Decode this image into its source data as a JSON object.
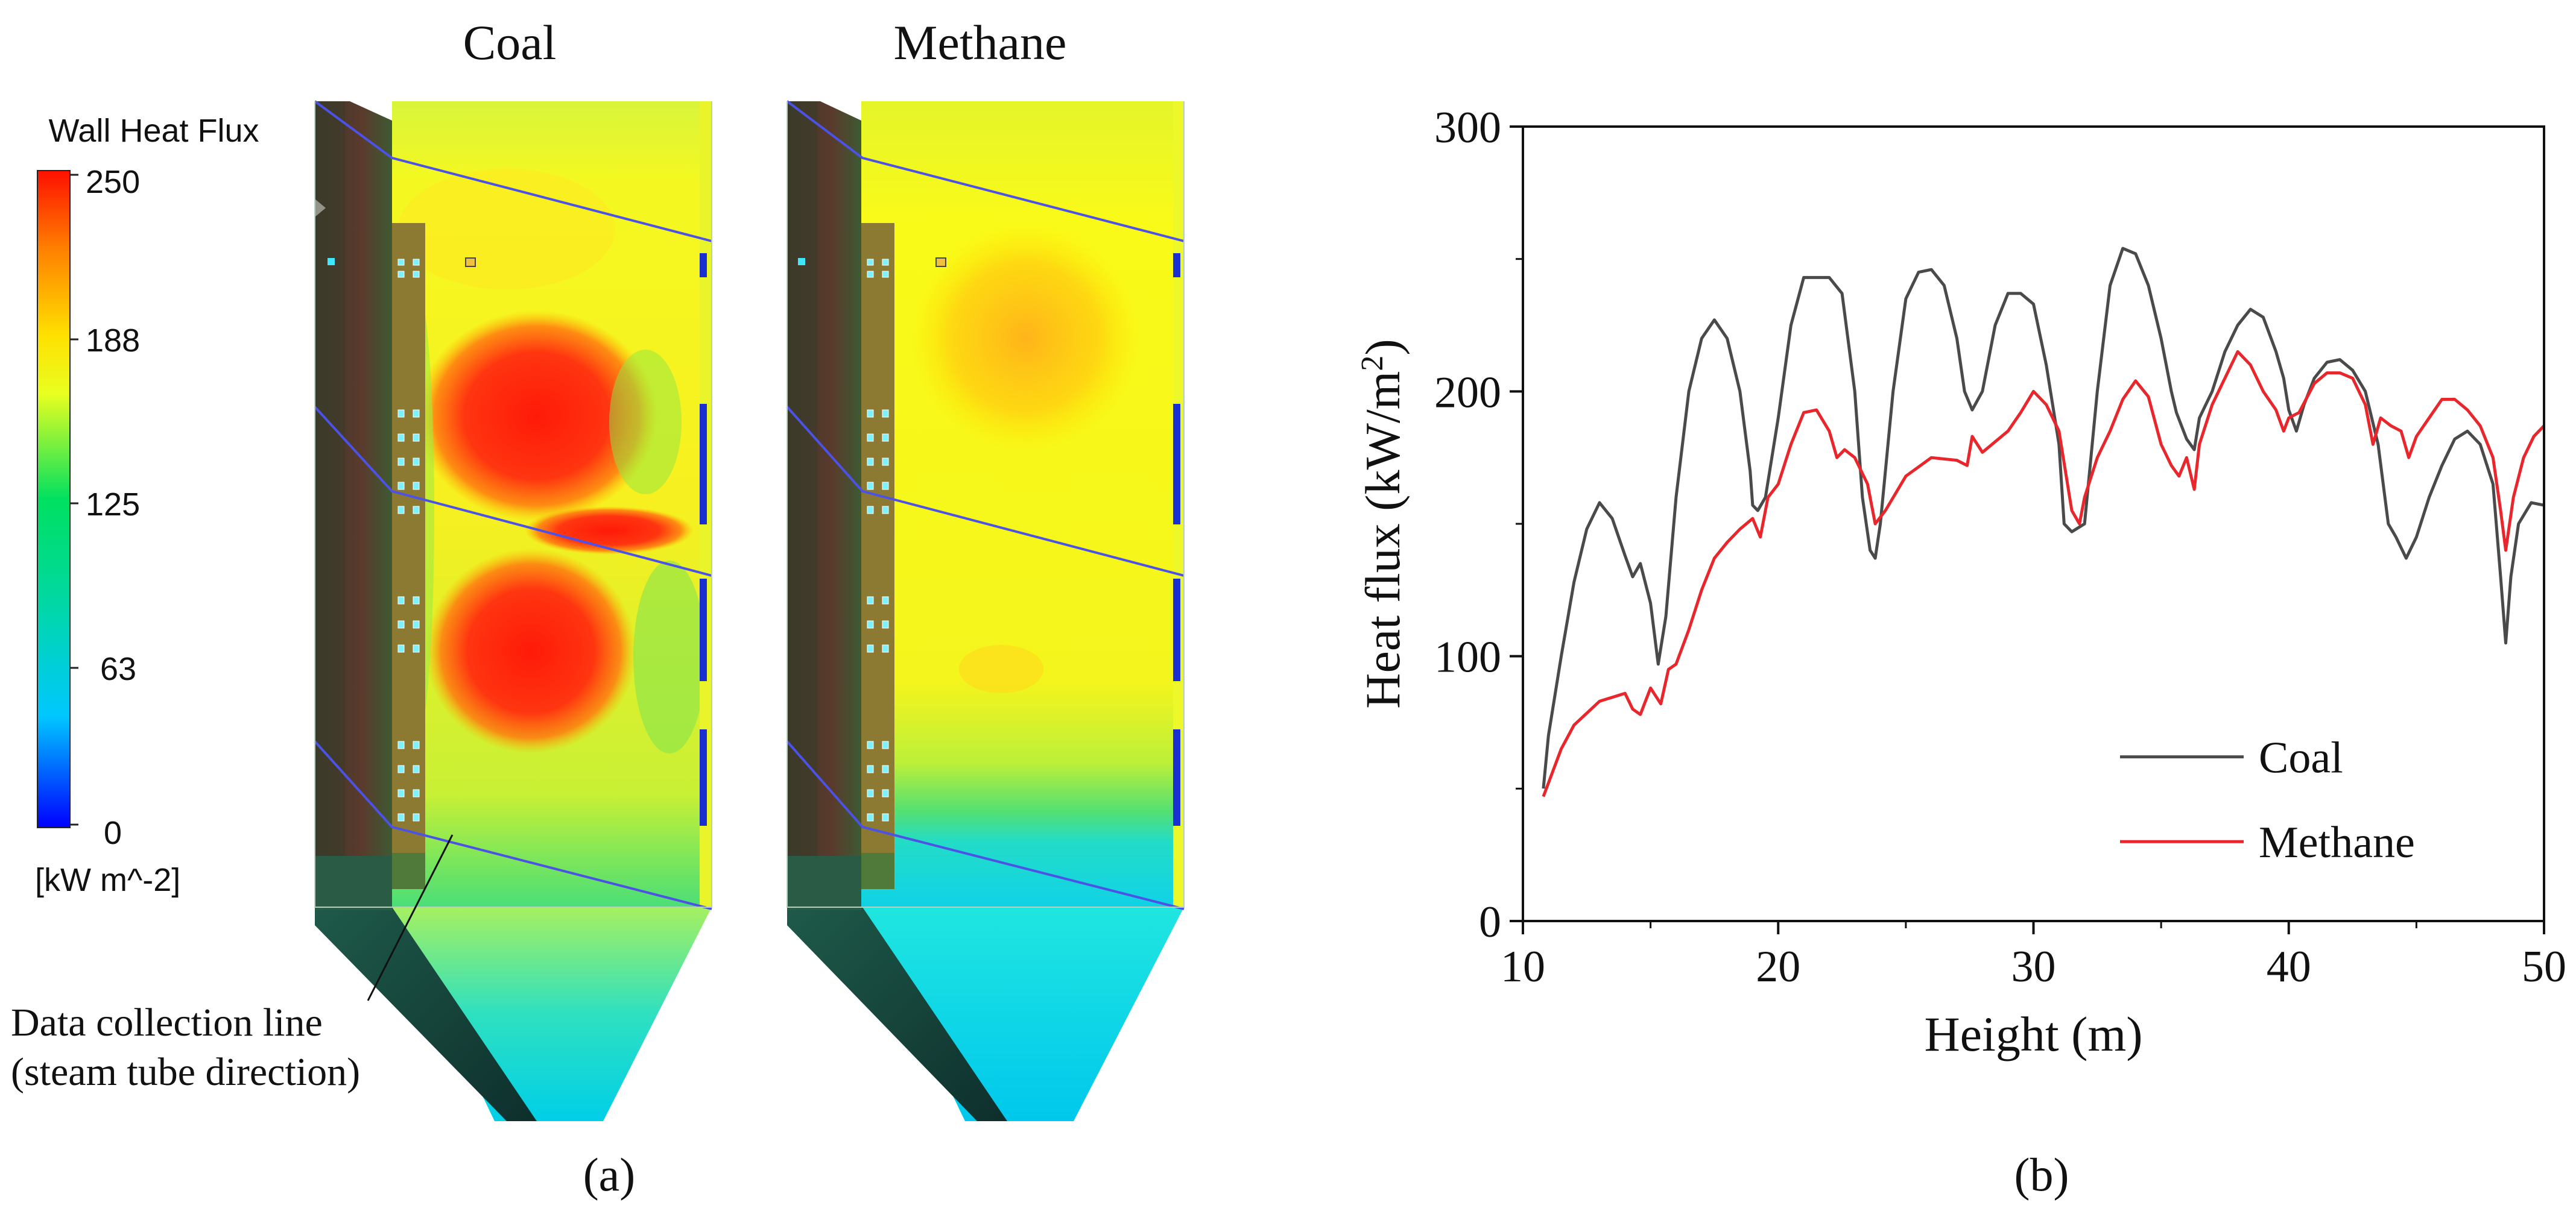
{
  "panel_a": {
    "label": "(a)",
    "coal_title": "Coal",
    "methane_title": "Methane",
    "colorbar": {
      "title": "Wall Heat Flux",
      "unit": "[kW m^-2]",
      "ticks": [
        "250",
        "188",
        "125",
        "63",
        "0"
      ],
      "range": [
        0,
        250
      ],
      "colors": [
        "#0000ff",
        "#00c8ff",
        "#00e060",
        "#e8ff20",
        "#ffe000",
        "#ff8000",
        "#ff1000"
      ]
    },
    "annotation_line1": "Data collection line",
    "annotation_line2": "(steam tube direction)"
  },
  "panel_b": {
    "label": "(b)"
  },
  "chart_data": {
    "type": "line",
    "title": "",
    "xlabel": "Height (m)",
    "ylabel_main": "Heat flux (kW/m",
    "ylabel_sup": "2",
    "ylabel_close": ")",
    "xlim": [
      10,
      50
    ],
    "ylim": [
      0,
      300
    ],
    "xticks": [
      10,
      20,
      30,
      40,
      50
    ],
    "yticks": [
      0,
      100,
      200,
      300
    ],
    "legend_position": "bottom-right",
    "series": [
      {
        "name": "Coal",
        "color": "#4a4a4a",
        "points": [
          [
            10.8,
            50
          ],
          [
            11.0,
            70
          ],
          [
            11.5,
            100
          ],
          [
            12.0,
            128
          ],
          [
            12.5,
            148
          ],
          [
            13.0,
            158
          ],
          [
            13.5,
            152
          ],
          [
            14.0,
            138
          ],
          [
            14.3,
            130
          ],
          [
            14.6,
            135
          ],
          [
            15.0,
            120
          ],
          [
            15.3,
            97
          ],
          [
            15.6,
            115
          ],
          [
            16.0,
            160
          ],
          [
            16.5,
            200
          ],
          [
            17.0,
            220
          ],
          [
            17.5,
            227
          ],
          [
            18.0,
            220
          ],
          [
            18.5,
            200
          ],
          [
            18.9,
            170
          ],
          [
            19.0,
            157
          ],
          [
            19.2,
            155
          ],
          [
            19.5,
            160
          ],
          [
            20.0,
            190
          ],
          [
            20.5,
            225
          ],
          [
            21.0,
            243
          ],
          [
            22.0,
            243
          ],
          [
            22.5,
            237
          ],
          [
            23.0,
            200
          ],
          [
            23.3,
            160
          ],
          [
            23.6,
            140
          ],
          [
            23.8,
            137
          ],
          [
            24.0,
            150
          ],
          [
            24.5,
            200
          ],
          [
            25.0,
            235
          ],
          [
            25.5,
            245
          ],
          [
            26.0,
            246
          ],
          [
            26.5,
            240
          ],
          [
            27.0,
            220
          ],
          [
            27.3,
            200
          ],
          [
            27.6,
            193
          ],
          [
            28.0,
            200
          ],
          [
            28.5,
            225
          ],
          [
            29.0,
            237
          ],
          [
            29.5,
            237
          ],
          [
            30.0,
            233
          ],
          [
            30.5,
            210
          ],
          [
            31.0,
            180
          ],
          [
            31.2,
            150
          ],
          [
            31.5,
            147
          ],
          [
            32.0,
            150
          ],
          [
            32.5,
            200
          ],
          [
            33.0,
            240
          ],
          [
            33.5,
            254
          ],
          [
            34.0,
            252
          ],
          [
            34.5,
            240
          ],
          [
            35.0,
            220
          ],
          [
            35.4,
            200
          ],
          [
            35.6,
            192
          ],
          [
            36.0,
            182
          ],
          [
            36.3,
            178
          ],
          [
            36.5,
            190
          ],
          [
            37.0,
            200
          ],
          [
            37.5,
            215
          ],
          [
            38.0,
            225
          ],
          [
            38.5,
            231
          ],
          [
            39.0,
            228
          ],
          [
            39.5,
            215
          ],
          [
            39.8,
            205
          ],
          [
            40.0,
            193
          ],
          [
            40.3,
            185
          ],
          [
            40.6,
            195
          ],
          [
            41.0,
            205
          ],
          [
            41.5,
            211
          ],
          [
            42.0,
            212
          ],
          [
            42.5,
            208
          ],
          [
            43.0,
            200
          ],
          [
            43.5,
            180
          ],
          [
            43.9,
            150
          ],
          [
            44.2,
            145
          ],
          [
            44.6,
            137
          ],
          [
            45.0,
            145
          ],
          [
            45.5,
            160
          ],
          [
            46.0,
            172
          ],
          [
            46.5,
            182
          ],
          [
            47.0,
            185
          ],
          [
            47.5,
            180
          ],
          [
            48.0,
            165
          ],
          [
            48.3,
            130
          ],
          [
            48.5,
            105
          ],
          [
            48.7,
            130
          ],
          [
            49.0,
            150
          ],
          [
            49.5,
            158
          ],
          [
            50.0,
            157
          ]
        ]
      },
      {
        "name": "Methane",
        "color": "#e8262b",
        "points": [
          [
            10.8,
            47
          ],
          [
            11.5,
            65
          ],
          [
            12.0,
            74
          ],
          [
            13.0,
            83
          ],
          [
            14.0,
            86
          ],
          [
            14.3,
            80
          ],
          [
            14.6,
            78
          ],
          [
            15.0,
            88
          ],
          [
            15.4,
            82
          ],
          [
            15.7,
            95
          ],
          [
            16.0,
            97
          ],
          [
            16.5,
            110
          ],
          [
            17.0,
            125
          ],
          [
            17.5,
            137
          ],
          [
            18.0,
            143
          ],
          [
            18.5,
            148
          ],
          [
            19.0,
            152
          ],
          [
            19.3,
            145
          ],
          [
            19.6,
            160
          ],
          [
            20.0,
            165
          ],
          [
            20.5,
            180
          ],
          [
            21.0,
            192
          ],
          [
            21.5,
            193
          ],
          [
            22.0,
            185
          ],
          [
            22.3,
            175
          ],
          [
            22.6,
            178
          ],
          [
            23.0,
            175
          ],
          [
            23.5,
            165
          ],
          [
            23.8,
            150
          ],
          [
            24.2,
            155
          ],
          [
            25.0,
            168
          ],
          [
            26.0,
            175
          ],
          [
            27.0,
            174
          ],
          [
            27.4,
            172
          ],
          [
            27.6,
            183
          ],
          [
            28.0,
            177
          ],
          [
            28.5,
            181
          ],
          [
            29.0,
            185
          ],
          [
            29.5,
            192
          ],
          [
            30.0,
            200
          ],
          [
            30.5,
            195
          ],
          [
            31.0,
            185
          ],
          [
            31.5,
            155
          ],
          [
            31.8,
            150
          ],
          [
            32.0,
            160
          ],
          [
            32.5,
            175
          ],
          [
            33.0,
            185
          ],
          [
            33.5,
            197
          ],
          [
            34.0,
            204
          ],
          [
            34.5,
            198
          ],
          [
            35.0,
            180
          ],
          [
            35.4,
            172
          ],
          [
            35.7,
            168
          ],
          [
            36.0,
            175
          ],
          [
            36.3,
            163
          ],
          [
            36.5,
            180
          ],
          [
            37.0,
            195
          ],
          [
            37.5,
            205
          ],
          [
            38.0,
            215
          ],
          [
            38.5,
            210
          ],
          [
            39.0,
            200
          ],
          [
            39.5,
            193
          ],
          [
            39.8,
            185
          ],
          [
            40.0,
            190
          ],
          [
            40.4,
            192
          ],
          [
            41.0,
            203
          ],
          [
            41.5,
            207
          ],
          [
            42.0,
            207
          ],
          [
            42.5,
            205
          ],
          [
            43.0,
            195
          ],
          [
            43.3,
            180
          ],
          [
            43.6,
            190
          ],
          [
            44.0,
            187
          ],
          [
            44.4,
            185
          ],
          [
            44.7,
            175
          ],
          [
            45.0,
            183
          ],
          [
            45.5,
            190
          ],
          [
            46.0,
            197
          ],
          [
            46.5,
            197
          ],
          [
            47.0,
            193
          ],
          [
            47.5,
            187
          ],
          [
            48.0,
            175
          ],
          [
            48.3,
            155
          ],
          [
            48.5,
            140
          ],
          [
            48.8,
            160
          ],
          [
            49.2,
            175
          ],
          [
            49.6,
            183
          ],
          [
            50.0,
            187
          ]
        ]
      }
    ]
  }
}
